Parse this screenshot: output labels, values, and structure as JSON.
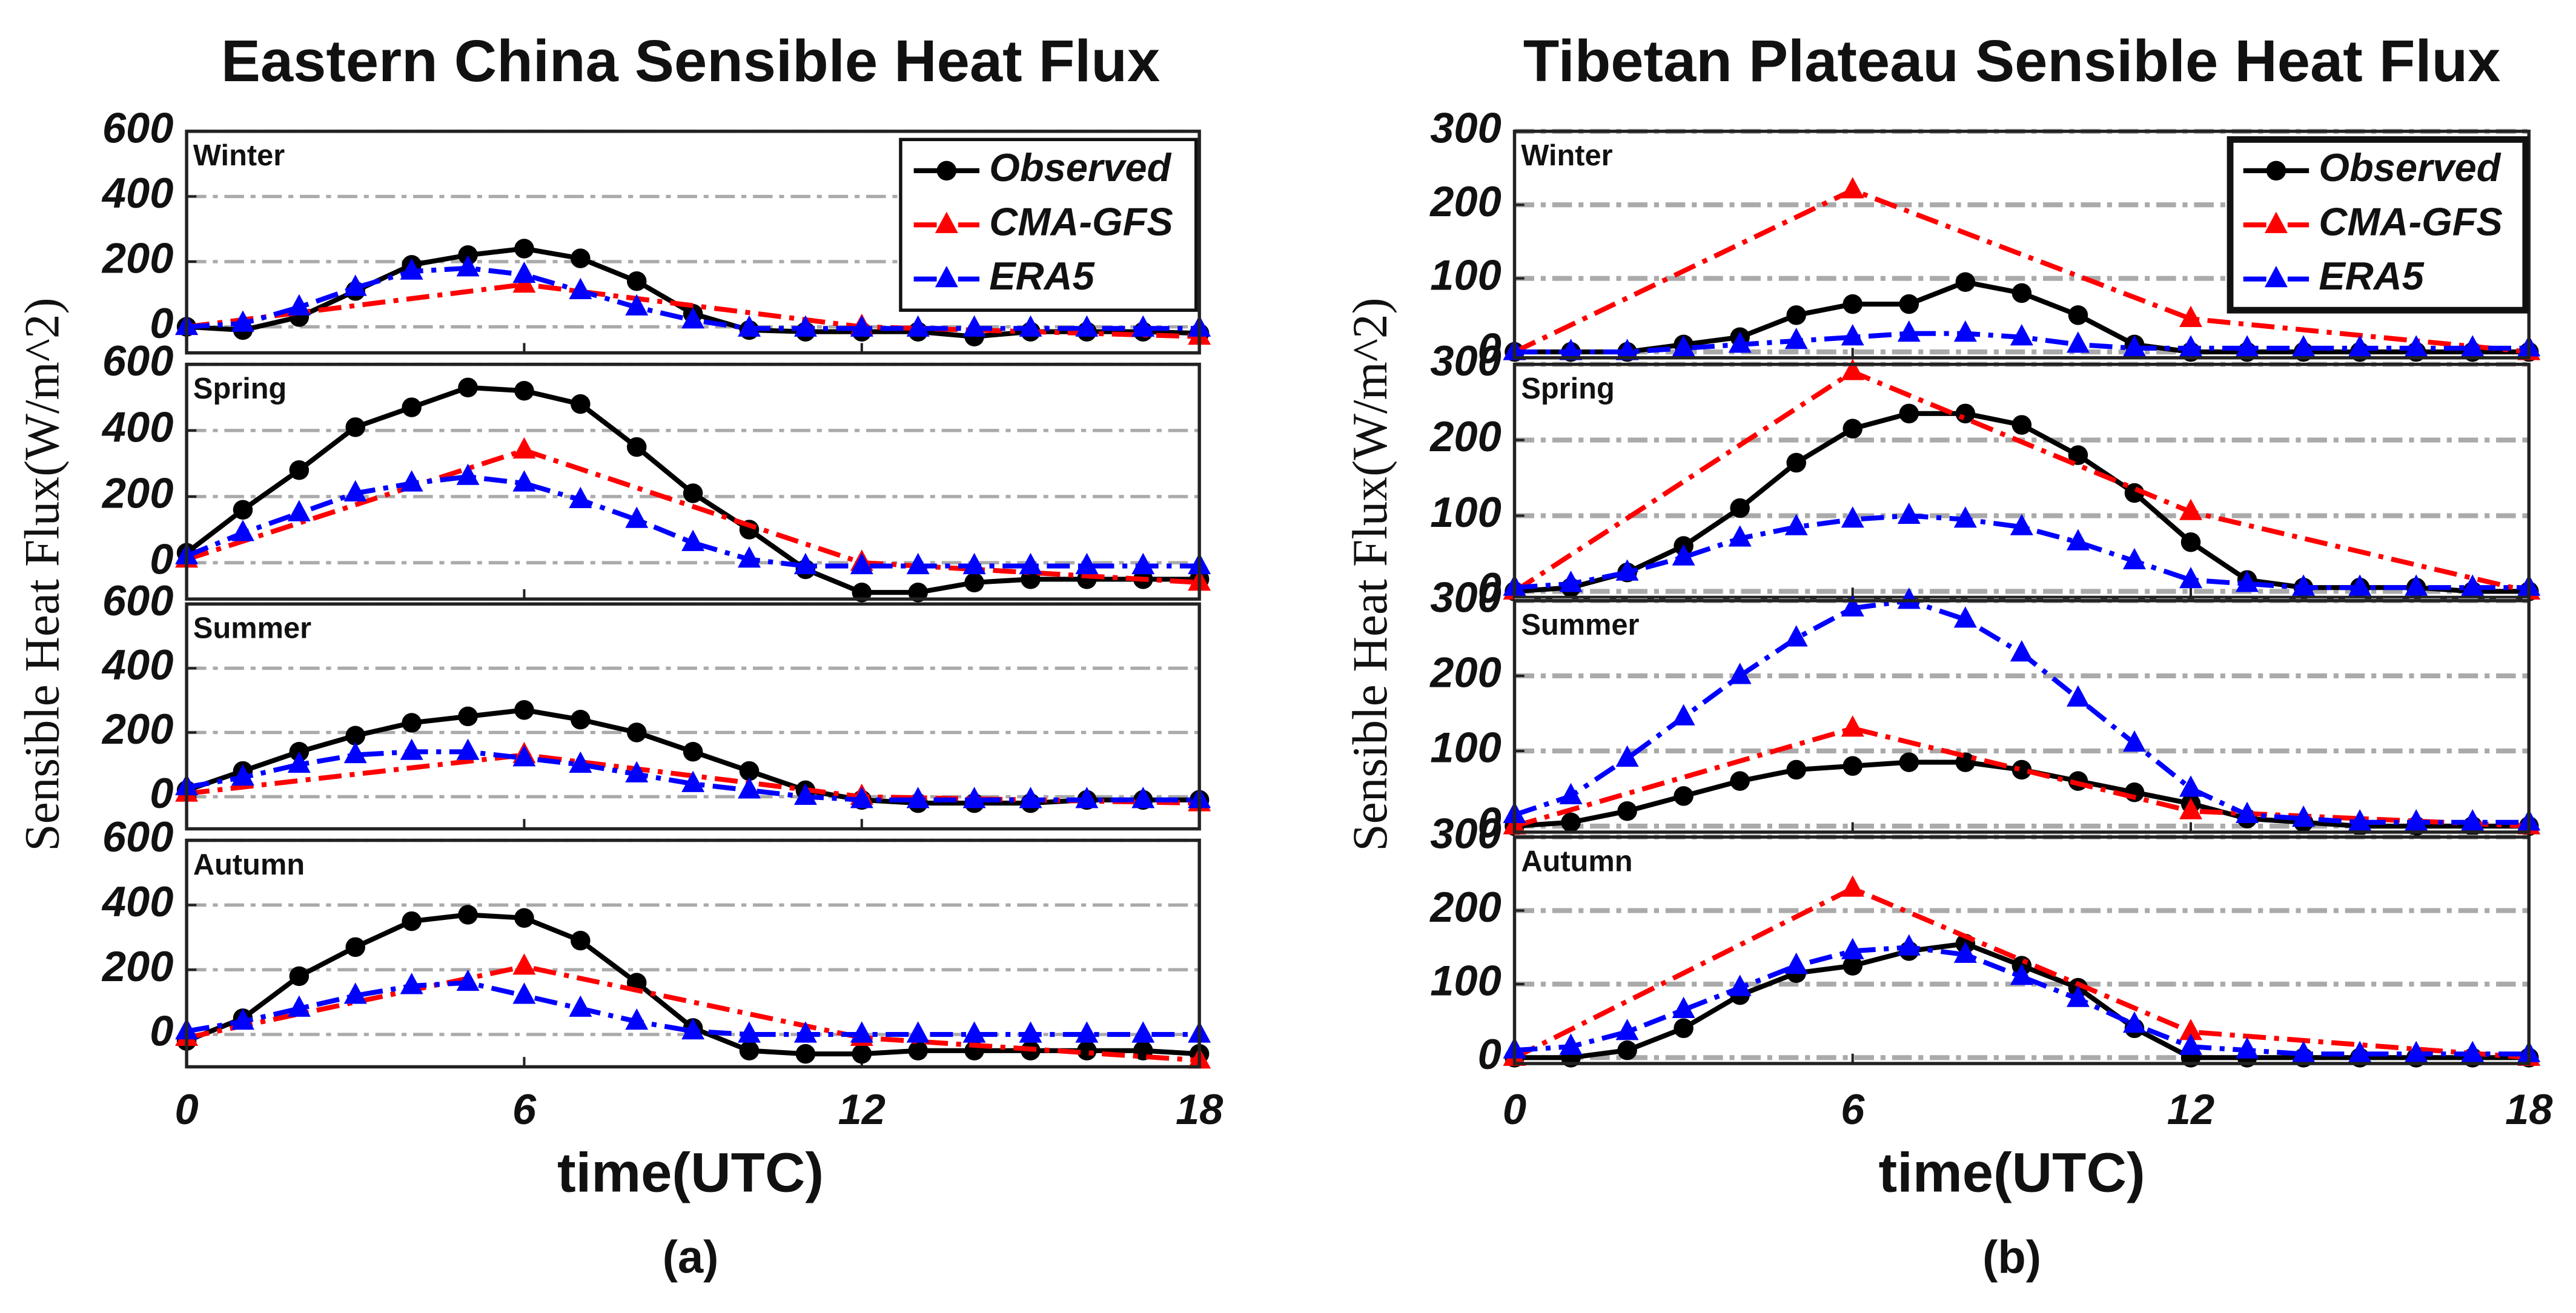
{
  "chart_data": [
    {
      "type": "line",
      "title": "Eastern China Sensible Heat Flux",
      "ylabel": "Sensible Heat Flux(W/m^2)",
      "xlabel": "time(UTC)",
      "panel_label": "(a)",
      "xlim": [
        0,
        18
      ],
      "xticks": [
        0,
        6,
        12,
        18
      ],
      "grid": true,
      "legend_loc": "upper right",
      "legend": [
        {
          "name": "Observed",
          "color": "#000000",
          "marker": "circle",
          "linestyle": "solid"
        },
        {
          "name": "CMA-GFS",
          "color": "#ff0000",
          "marker": "triangle",
          "linestyle": "dashdot"
        },
        {
          "name": "ERA5",
          "color": "#0000ff",
          "marker": "triangle",
          "linestyle": "dashdot"
        }
      ],
      "panels": [
        {
          "label": "Winter",
          "ylim": [
            -80,
            600
          ],
          "yticks": [
            0,
            200,
            400,
            600
          ],
          "series": [
            {
              "x": [
                0,
                1,
                2,
                3,
                4,
                5,
                6,
                7,
                8,
                9,
                10,
                11,
                12,
                13,
                14,
                15,
                16,
                17,
                18
              ],
              "values": [
                0,
                -10,
                30,
                110,
                190,
                220,
                240,
                210,
                140,
                40,
                -10,
                -15,
                -15,
                -15,
                -30,
                -15,
                -15,
                -15,
                -20
              ]
            },
            {
              "x": [
                0,
                6,
                12,
                18
              ],
              "values": [
                0,
                130,
                0,
                -30
              ]
            },
            {
              "x": [
                0,
                1,
                2,
                3,
                4,
                5,
                6,
                7,
                8,
                9,
                10,
                11,
                12,
                13,
                14,
                15,
                16,
                17,
                18
              ],
              "values": [
                0,
                10,
                60,
                120,
                170,
                180,
                160,
                110,
                60,
                20,
                -5,
                -5,
                -5,
                -5,
                -5,
                -5,
                -5,
                -5,
                -5
              ]
            }
          ]
        },
        {
          "label": "Spring",
          "ylim": [
            -110,
            600
          ],
          "yticks": [
            0,
            200,
            400,
            600
          ],
          "series": [
            {
              "x": [
                0,
                1,
                2,
                3,
                4,
                5,
                6,
                7,
                8,
                9,
                10,
                11,
                12,
                13,
                14,
                15,
                16,
                17,
                18
              ],
              "values": [
                30,
                160,
                280,
                410,
                470,
                530,
                520,
                480,
                350,
                210,
                100,
                -20,
                -90,
                -90,
                -60,
                -50,
                -50,
                -50,
                -50
              ]
            },
            {
              "x": [
                0,
                6,
                12,
                18
              ],
              "values": [
                10,
                340,
                0,
                -60
              ]
            },
            {
              "x": [
                0,
                1,
                2,
                3,
                4,
                5,
                6,
                7,
                8,
                9,
                10,
                11,
                12,
                13,
                14,
                15,
                16,
                17,
                18
              ],
              "values": [
                20,
                90,
                150,
                210,
                240,
                260,
                240,
                190,
                130,
                60,
                10,
                -10,
                -10,
                -10,
                -10,
                -10,
                -10,
                -10,
                -10
              ]
            }
          ]
        },
        {
          "label": "Summer",
          "ylim": [
            -100,
            600
          ],
          "yticks": [
            0,
            200,
            400,
            600
          ],
          "series": [
            {
              "x": [
                0,
                1,
                2,
                3,
                4,
                5,
                6,
                7,
                8,
                9,
                10,
                11,
                12,
                13,
                14,
                15,
                16,
                17,
                18
              ],
              "values": [
                20,
                80,
                140,
                190,
                230,
                250,
                270,
                240,
                200,
                140,
                80,
                20,
                -10,
                -20,
                -20,
                -20,
                -10,
                -10,
                -10
              ]
            },
            {
              "x": [
                0,
                6,
                12,
                18
              ],
              "values": [
                10,
                130,
                0,
                -20
              ]
            },
            {
              "x": [
                0,
                1,
                2,
                3,
                4,
                5,
                6,
                7,
                8,
                9,
                10,
                11,
                12,
                13,
                14,
                15,
                16,
                17,
                18
              ],
              "values": [
                30,
                60,
                100,
                130,
                140,
                140,
                120,
                100,
                70,
                40,
                20,
                0,
                -10,
                -10,
                -10,
                -10,
                -10,
                -10,
                -10
              ]
            }
          ]
        },
        {
          "label": "Autumn",
          "ylim": [
            -100,
            600
          ],
          "yticks": [
            0,
            200,
            400,
            600
          ],
          "series": [
            {
              "x": [
                0,
                1,
                2,
                3,
                4,
                5,
                6,
                7,
                8,
                9,
                10,
                11,
                12,
                13,
                14,
                15,
                16,
                17,
                18
              ],
              "values": [
                -20,
                50,
                180,
                270,
                350,
                370,
                360,
                290,
                160,
                20,
                -50,
                -60,
                -60,
                -50,
                -50,
                -50,
                -50,
                -50,
                -60
              ]
            },
            {
              "x": [
                0,
                6,
                12,
                18
              ],
              "values": [
                -10,
                210,
                -10,
                -80
              ]
            },
            {
              "x": [
                0,
                1,
                2,
                3,
                4,
                5,
                6,
                7,
                8,
                9,
                10,
                11,
                12,
                13,
                14,
                15,
                16,
                17,
                18
              ],
              "values": [
                10,
                40,
                80,
                120,
                150,
                160,
                120,
                80,
                40,
                10,
                0,
                0,
                0,
                0,
                0,
                0,
                0,
                0,
                0
              ]
            }
          ]
        }
      ]
    },
    {
      "type": "line",
      "title": "Tibetan Plateau Sensible Heat Flux",
      "ylabel": "Sensible Heat Flux(W/m^2)",
      "xlabel": "time(UTC)",
      "panel_label": "(b)",
      "xlim": [
        0,
        18
      ],
      "xticks": [
        0,
        6,
        12,
        18
      ],
      "grid": true,
      "legend_loc": "upper right",
      "legend": [
        {
          "name": "Observed",
          "color": "#000000",
          "marker": "circle",
          "linestyle": "solid"
        },
        {
          "name": "CMA-GFS",
          "color": "#ff0000",
          "marker": "triangle",
          "linestyle": "dashdot"
        },
        {
          "name": "ERA5",
          "color": "#0000ff",
          "marker": "triangle",
          "linestyle": "dashdot"
        }
      ],
      "panels": [
        {
          "label": "Winter",
          "ylim": [
            -8,
            300
          ],
          "yticks": [
            0,
            100,
            200,
            300
          ],
          "series": [
            {
              "x": [
                0,
                1,
                2,
                3,
                4,
                5,
                6,
                7,
                8,
                9,
                10,
                11,
                12,
                13,
                14,
                15,
                16,
                17,
                18
              ],
              "values": [
                0,
                0,
                0,
                10,
                20,
                50,
                65,
                65,
                95,
                80,
                50,
                10,
                0,
                0,
                0,
                0,
                0,
                0,
                0
              ]
            },
            {
              "x": [
                0,
                6,
                12,
                18
              ],
              "values": [
                0,
                220,
                45,
                0
              ]
            },
            {
              "x": [
                0,
                1,
                2,
                3,
                4,
                5,
                6,
                7,
                8,
                9,
                10,
                11,
                12,
                13,
                14,
                15,
                16,
                17,
                18
              ],
              "values": [
                0,
                0,
                0,
                5,
                10,
                15,
                20,
                25,
                25,
                20,
                10,
                5,
                5,
                5,
                5,
                5,
                5,
                5,
                5
              ]
            }
          ]
        },
        {
          "label": "Spring",
          "ylim": [
            -8,
            300
          ],
          "yticks": [
            0,
            100,
            200,
            300
          ],
          "series": [
            {
              "x": [
                0,
                1,
                2,
                3,
                4,
                5,
                6,
                7,
                8,
                9,
                10,
                11,
                12,
                13,
                14,
                15,
                16,
                17,
                18
              ],
              "values": [
                0,
                5,
                25,
                60,
                110,
                170,
                215,
                235,
                235,
                220,
                180,
                130,
                65,
                15,
                5,
                5,
                5,
                0,
                0
              ]
            },
            {
              "x": [
                0,
                6,
                12,
                18
              ],
              "values": [
                0,
                290,
                105,
                0
              ]
            },
            {
              "x": [
                0,
                1,
                2,
                3,
                4,
                5,
                6,
                7,
                8,
                9,
                10,
                11,
                12,
                13,
                14,
                15,
                16,
                17,
                18
              ],
              "values": [
                5,
                10,
                25,
                45,
                70,
                85,
                95,
                100,
                95,
                85,
                65,
                40,
                15,
                10,
                5,
                5,
                5,
                5,
                5
              ]
            }
          ]
        },
        {
          "label": "Summer",
          "ylim": [
            -8,
            300
          ],
          "yticks": [
            0,
            100,
            200,
            300
          ],
          "series": [
            {
              "x": [
                0,
                1,
                2,
                3,
                4,
                5,
                6,
                7,
                8,
                9,
                10,
                11,
                12,
                13,
                14,
                15,
                16,
                17,
                18
              ],
              "values": [
                0,
                5,
                20,
                40,
                60,
                75,
                80,
                85,
                85,
                75,
                60,
                45,
                30,
                10,
                5,
                0,
                0,
                0,
                0
              ]
            },
            {
              "x": [
                0,
                6,
                12,
                18
              ],
              "values": [
                0,
                130,
                20,
                0
              ]
            },
            {
              "x": [
                0,
                1,
                2,
                3,
                4,
                5,
                6,
                7,
                8,
                9,
                10,
                11,
                12,
                13,
                14,
                15,
                16,
                17,
                18
              ],
              "values": [
                15,
                40,
                90,
                145,
                200,
                250,
                290,
                300,
                275,
                230,
                170,
                110,
                50,
                15,
                10,
                5,
                5,
                5,
                5
              ]
            }
          ]
        },
        {
          "label": "Autumn",
          "ylim": [
            -8,
            300
          ],
          "yticks": [
            0,
            100,
            200,
            300
          ],
          "series": [
            {
              "x": [
                0,
                1,
                2,
                3,
                4,
                5,
                6,
                7,
                8,
                9,
                10,
                11,
                12,
                13,
                14,
                15,
                16,
                17,
                18
              ],
              "values": [
                0,
                0,
                10,
                40,
                85,
                115,
                125,
                145,
                155,
                125,
                95,
                40,
                0,
                0,
                0,
                0,
                0,
                0,
                0
              ]
            },
            {
              "x": [
                0,
                6,
                12,
                18
              ],
              "values": [
                0,
                230,
                35,
                0
              ]
            },
            {
              "x": [
                0,
                1,
                2,
                3,
                4,
                5,
                6,
                7,
                8,
                9,
                10,
                11,
                12,
                13,
                14,
                15,
                16,
                17,
                18
              ],
              "values": [
                10,
                15,
                35,
                65,
                95,
                125,
                145,
                150,
                140,
                110,
                80,
                45,
                15,
                10,
                5,
                5,
                5,
                5,
                5
              ]
            }
          ]
        }
      ]
    }
  ]
}
